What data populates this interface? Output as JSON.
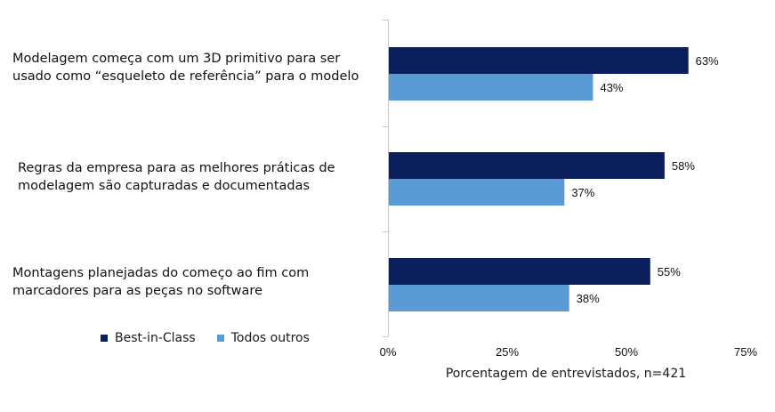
{
  "chart_data": {
    "type": "bar",
    "orientation": "horizontal",
    "categories": [
      "Modelagem começa com um 3D primitivo para ser usado como “esqueleto de referência” para o modelo",
      "Regras da empresa para as melhores práticas de modelagem são capturadas e documentadas",
      "Montagens planejadas do começo ao fim com marcadores para as peças no software"
    ],
    "series": [
      {
        "name": "Best-in-Class",
        "color": "#0a1f5c",
        "values": [
          63,
          58,
          55
        ]
      },
      {
        "name": "Todos outros",
        "color": "#5b9bd5",
        "values": [
          43,
          37,
          38
        ]
      }
    ],
    "value_labels": [
      [
        "63%",
        "58%",
        "55%"
      ],
      [
        "43%",
        "37%",
        "38%"
      ]
    ],
    "xlabel": "Porcentagem de entrevistados, n=421",
    "ylabel": "",
    "title": "",
    "xlim": [
      0,
      75
    ],
    "xticks": [
      "0%",
      "25%",
      "50%",
      "75%"
    ],
    "xtick_values": [
      0,
      25,
      50,
      75
    ],
    "grid": false,
    "legend_position": "bottom-left"
  }
}
